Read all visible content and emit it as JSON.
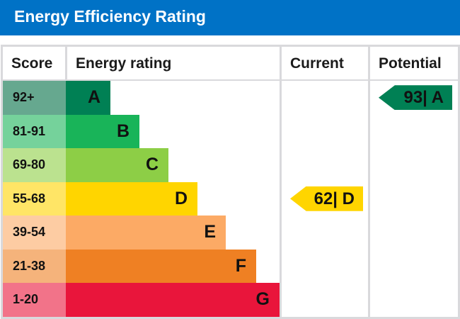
{
  "title": "Energy Efficiency Rating",
  "headers": {
    "score": "Score",
    "rating": "Energy rating",
    "current": "Current",
    "potential": "Potential"
  },
  "chart_data": {
    "type": "bar",
    "bands": [
      {
        "score": "92+",
        "letter": "A",
        "color": "#008054",
        "score_color": "#66a88f"
      },
      {
        "score": "81-91",
        "letter": "B",
        "color": "#19b459",
        "score_color": "#75d29b"
      },
      {
        "score": "69-80",
        "letter": "C",
        "color": "#8dce46",
        "score_color": "#bbe28f"
      },
      {
        "score": "55-68",
        "letter": "D",
        "color": "#ffd500",
        "score_color": "#ffe566"
      },
      {
        "score": "39-54",
        "letter": "E",
        "color": "#fcaa65",
        "score_color": "#fdcca3"
      },
      {
        "score": "21-38",
        "letter": "F",
        "color": "#ef8023",
        "score_color": "#f5b37b"
      },
      {
        "score": "1-20",
        "letter": "G",
        "color": "#e9153b",
        "score_color": "#f27389"
      }
    ],
    "current": {
      "value": 62,
      "letter": "D",
      "label": "62| D"
    },
    "potential": {
      "value": 93,
      "letter": "A",
      "label": "93| A"
    }
  }
}
